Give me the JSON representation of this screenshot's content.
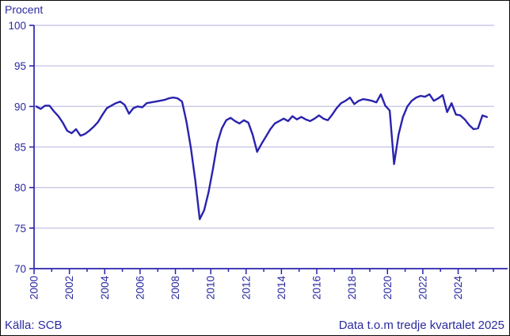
{
  "labels": {
    "y_axis_title": "Procent",
    "source": "Källa: SCB",
    "note": "Data t.o.m tredje kvartalet 2025"
  },
  "colors": {
    "line": "#2a23ad",
    "axis": "#2a23ad",
    "tick_text": "#2b2aa1",
    "grid": "#c9c9e8",
    "background": "#ffffff",
    "border": "#0a0a0a"
  },
  "chart_data": {
    "type": "line",
    "title": "Procent",
    "xlabel": "",
    "ylabel": "Procent",
    "frequency": "quarterly",
    "x_start": 2000.125,
    "x_step": 0.25,
    "xlim": [
      2000,
      2026.8
    ],
    "ylim": [
      70,
      100
    ],
    "yticks": [
      70,
      75,
      80,
      85,
      90,
      95,
      100
    ],
    "xticks": [
      2000,
      2002,
      2004,
      2006,
      2008,
      2010,
      2012,
      2014,
      2016,
      2018,
      2020,
      2022,
      2024
    ],
    "minor_xtick_step": 1,
    "grid": "horizontal",
    "legend": "none",
    "series": [
      {
        "name": "Procent",
        "start_period": "2000K1",
        "end_period": "2025K3",
        "values": [
          90.0,
          89.7,
          90.1,
          90.1,
          89.4,
          88.8,
          88.0,
          87.0,
          86.7,
          87.2,
          86.4,
          86.6,
          87.0,
          87.5,
          88.1,
          89.0,
          89.8,
          90.1,
          90.4,
          90.6,
          90.2,
          89.1,
          89.8,
          90.0,
          89.9,
          90.4,
          90.5,
          90.6,
          90.7,
          90.8,
          91.0,
          91.1,
          91.0,
          90.6,
          88.1,
          84.9,
          80.9,
          76.1,
          77.2,
          79.4,
          82.3,
          85.5,
          87.3,
          88.3,
          88.6,
          88.2,
          87.9,
          88.3,
          88.0,
          86.5,
          84.4,
          85.4,
          86.3,
          87.2,
          87.9,
          88.2,
          88.5,
          88.2,
          88.8,
          88.4,
          88.7,
          88.4,
          88.2,
          88.5,
          88.9,
          88.5,
          88.3,
          89.0,
          89.8,
          90.4,
          90.7,
          91.1,
          90.3,
          90.7,
          90.9,
          90.8,
          90.7,
          90.5,
          91.5,
          90.1,
          89.5,
          82.9,
          86.5,
          88.7,
          90.0,
          90.7,
          91.1,
          91.3,
          91.2,
          91.5,
          90.7,
          91.0,
          91.4,
          89.3,
          90.4,
          89.0,
          88.9,
          88.4,
          87.7,
          87.2,
          87.3,
          88.9,
          88.7
        ]
      }
    ]
  }
}
